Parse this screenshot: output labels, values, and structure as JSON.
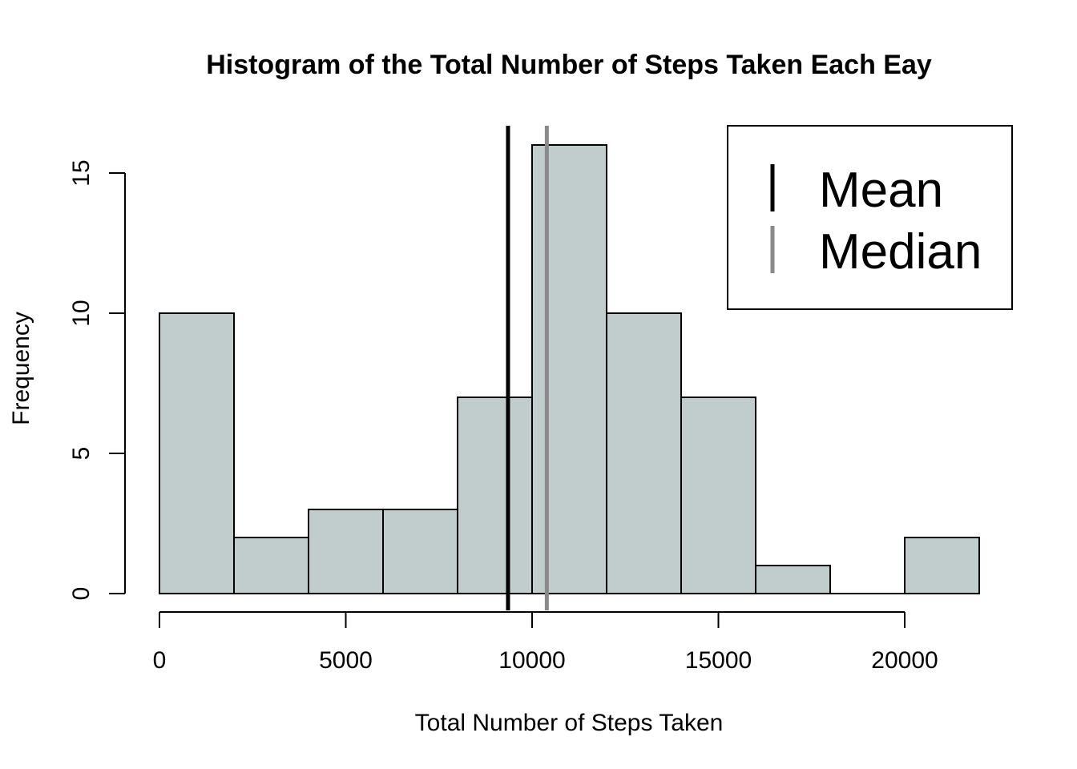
{
  "chart_data": {
    "type": "bar",
    "subtype": "histogram",
    "title": "Histogram of the Total Number of Steps Taken Each Eay",
    "xlabel": "Total Number of Steps Taken",
    "ylabel": "Frequency",
    "bins": [
      {
        "start": 0,
        "end": 2000,
        "count": 10
      },
      {
        "start": 2000,
        "end": 4000,
        "count": 2
      },
      {
        "start": 4000,
        "end": 6000,
        "count": 3
      },
      {
        "start": 6000,
        "end": 8000,
        "count": 3
      },
      {
        "start": 8000,
        "end": 10000,
        "count": 7
      },
      {
        "start": 10000,
        "end": 12000,
        "count": 16
      },
      {
        "start": 12000,
        "end": 14000,
        "count": 10
      },
      {
        "start": 14000,
        "end": 16000,
        "count": 7
      },
      {
        "start": 16000,
        "end": 18000,
        "count": 1
      },
      {
        "start": 18000,
        "end": 20000,
        "count": 0
      },
      {
        "start": 20000,
        "end": 22000,
        "count": 2
      }
    ],
    "xlim": [
      0,
      22000
    ],
    "ylim": [
      0,
      16
    ],
    "xticks": [
      0,
      5000,
      10000,
      15000,
      20000
    ],
    "yticks": [
      0,
      5,
      10,
      15
    ],
    "bar_color": "#c1cdcd",
    "bar_edge_color": "#000000",
    "reference_lines": [
      {
        "name": "Mean",
        "value": 9354,
        "color": "#000000"
      },
      {
        "name": "Median",
        "value": 10395,
        "color": "#8a8a8a"
      }
    ],
    "legend_position": "top-right",
    "grid": false
  }
}
